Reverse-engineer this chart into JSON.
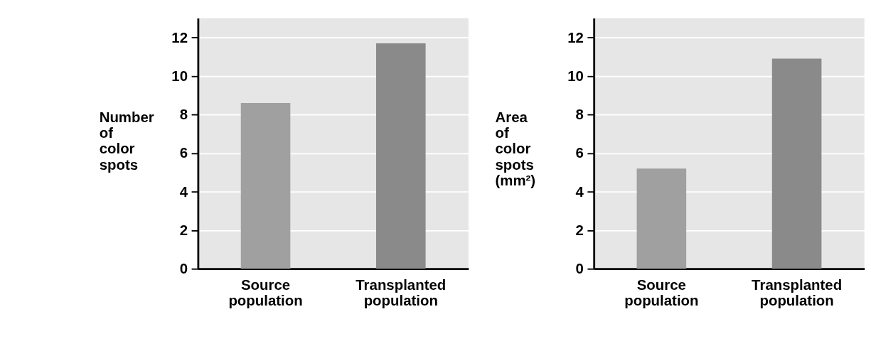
{
  "chart_data": [
    {
      "type": "bar",
      "ylabel": "Number of color spots",
      "categories": [
        "Source population",
        "Transplanted population"
      ],
      "colors": [
        "#a0a0a0",
        "#8a8a8a"
      ],
      "values": [
        8.6,
        11.7
      ],
      "ylim": [
        0,
        13
      ],
      "yticks": [
        0,
        2,
        4,
        6,
        8,
        10,
        12
      ],
      "grid": "y"
    },
    {
      "type": "bar",
      "ylabel": "Area of color spots (mm²)",
      "categories": [
        "Source population",
        "Transplanted population"
      ],
      "colors": [
        "#a0a0a0",
        "#8a8a8a"
      ],
      "values": [
        5.2,
        10.9
      ],
      "ylim": [
        0,
        13
      ],
      "yticks": [
        0,
        2,
        4,
        6,
        8,
        10,
        12
      ],
      "grid": "y"
    }
  ]
}
